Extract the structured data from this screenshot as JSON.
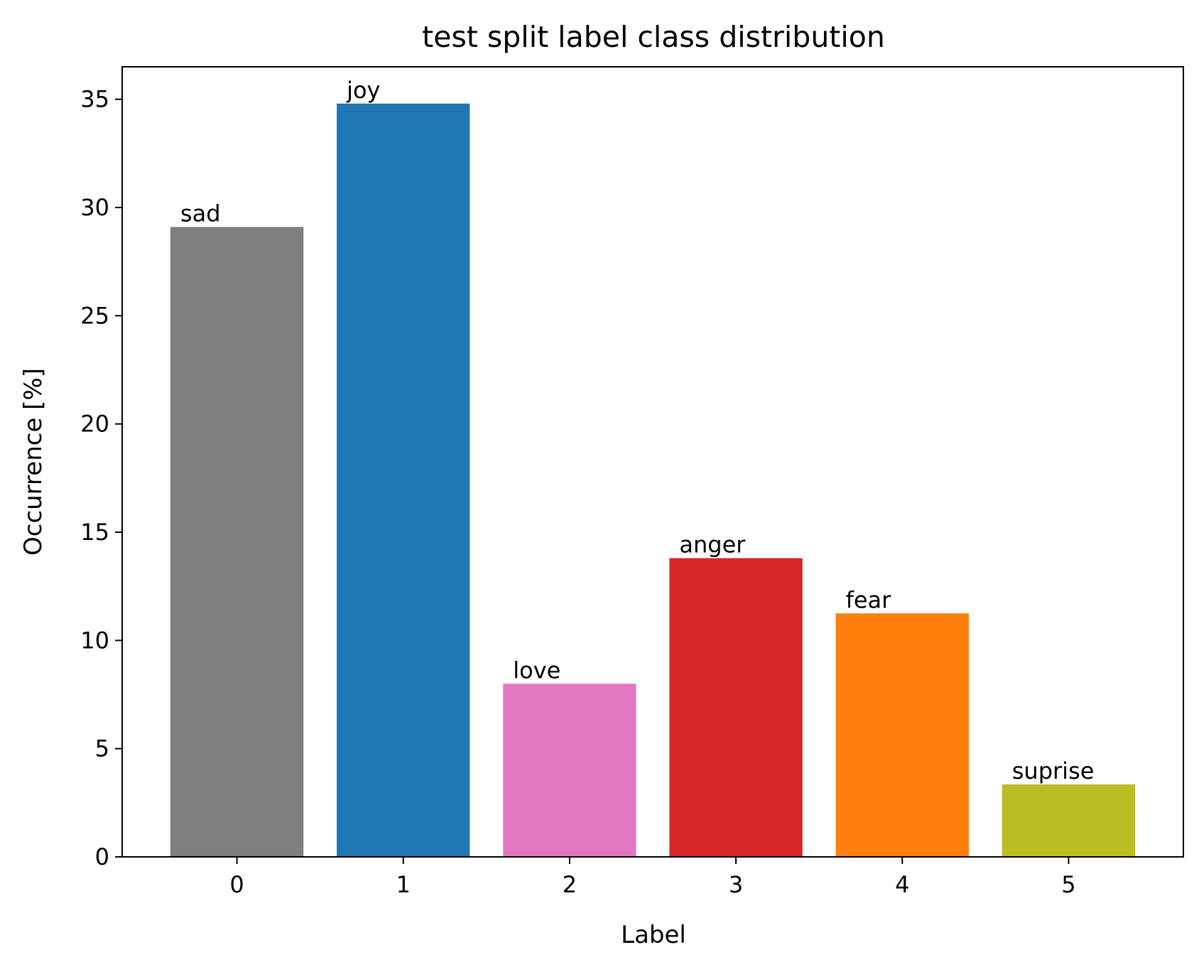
{
  "chart_data": {
    "type": "bar",
    "title": "test split label class distribution",
    "xlabel": "Label",
    "ylabel": "Occurrence [%]",
    "categories": [
      "0",
      "1",
      "2",
      "3",
      "4",
      "5"
    ],
    "values": [
      29.1,
      34.8,
      8.0,
      13.8,
      11.25,
      3.35
    ],
    "bar_labels": [
      "sad",
      "joy",
      "love",
      "anger",
      "fear",
      "suprise"
    ],
    "colors": [
      "#7f7f7f",
      "#1f77b4",
      "#e377c2",
      "#d62728",
      "#ff7f0e",
      "#bcbd22"
    ],
    "ylim": [
      0,
      36.5
    ],
    "yticks": [
      0,
      5,
      10,
      15,
      20,
      25,
      30,
      35
    ],
    "xlim": [
      -0.69,
      5.69
    ],
    "grid": false,
    "legend": "none"
  }
}
